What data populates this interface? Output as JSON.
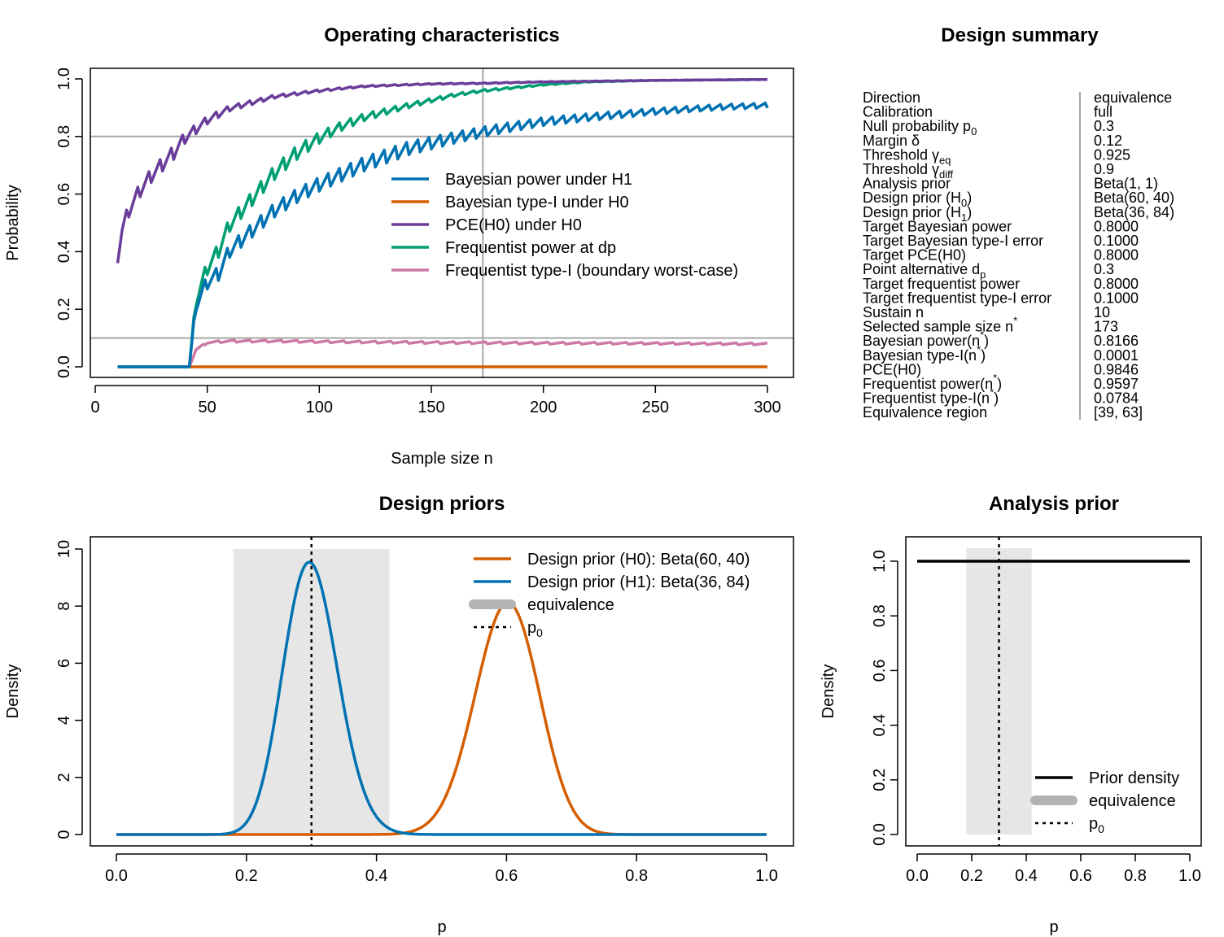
{
  "colors": {
    "blue": "#0072B2",
    "orange": "#D55E00",
    "purple": "#6A3D9A",
    "green": "#009E73",
    "pink": "#CC79A7",
    "gray_line": "#A6A6A6",
    "region": "#E6E6E6",
    "legend_gray": "#B3B3B3"
  },
  "chart_data": [
    {
      "id": "operating",
      "type": "line",
      "title": "Operating characteristics",
      "xlabel": "Sample size n",
      "ylabel": "Probability",
      "xlim": [
        0,
        300
      ],
      "ylim": [
        0,
        1
      ],
      "xticks": [
        0,
        50,
        100,
        150,
        200,
        250,
        300
      ],
      "yticks": [
        0.0,
        0.2,
        0.4,
        0.6,
        0.8,
        1.0
      ],
      "xtick_labels": [
        "0",
        "50",
        "100",
        "150",
        "200",
        "250",
        "300"
      ],
      "ytick_labels": [
        "0.0",
        "0.2",
        "0.4",
        "0.6",
        "0.8",
        "1.0"
      ],
      "ref_hlines": [
        0.8,
        0.1
      ],
      "ref_vline": 173,
      "legend_position": "right",
      "series": [
        {
          "name": "Bayesian power under H1",
          "color_key": "blue",
          "x": [
            10,
            40,
            42,
            45,
            50,
            55,
            60,
            70,
            80,
            90,
            100,
            120,
            140,
            160,
            173,
            180,
            200,
            220,
            250,
            280,
            300
          ],
          "y": [
            0,
            0,
            0,
            0.22,
            0.3,
            0.33,
            0.41,
            0.48,
            0.55,
            0.6,
            0.64,
            0.71,
            0.765,
            0.8,
            0.82,
            0.83,
            0.855,
            0.87,
            0.89,
            0.905,
            0.91
          ]
        },
        {
          "name": "Bayesian type-I under H0",
          "color_key": "orange",
          "x": [
            10,
            300
          ],
          "y": [
            0,
            0
          ]
        },
        {
          "name": "PCE(H0) under H0",
          "color_key": "purple",
          "x": [
            10,
            12,
            15,
            20,
            25,
            30,
            35,
            40,
            45,
            50,
            60,
            70,
            80,
            100,
            120,
            150,
            173,
            200,
            250,
            300
          ],
          "y": [
            0.39,
            0.48,
            0.55,
            0.62,
            0.67,
            0.71,
            0.75,
            0.8,
            0.83,
            0.86,
            0.9,
            0.92,
            0.94,
            0.96,
            0.975,
            0.983,
            0.985,
            0.99,
            0.995,
            0.998
          ]
        },
        {
          "name": "Frequentist power at dp",
          "color_key": "green",
          "x": [
            10,
            40,
            42,
            45,
            50,
            55,
            60,
            70,
            80,
            90,
            100,
            110,
            120,
            140,
            160,
            173,
            180,
            200,
            220,
            250,
            300
          ],
          "y": [
            0,
            0,
            0,
            0.24,
            0.35,
            0.41,
            0.5,
            0.59,
            0.68,
            0.75,
            0.8,
            0.84,
            0.87,
            0.91,
            0.945,
            0.96,
            0.965,
            0.98,
            0.99,
            0.995,
            0.998
          ]
        },
        {
          "name": "Frequentist type-I (boundary worst-case)",
          "color_key": "pink",
          "x": [
            10,
            40,
            42,
            45,
            50,
            60,
            70,
            80,
            100,
            150,
            200,
            250,
            300
          ],
          "y": [
            0,
            0,
            0,
            0.06,
            0.085,
            0.09,
            0.09,
            0.09,
            0.088,
            0.085,
            0.083,
            0.082,
            0.08
          ]
        }
      ]
    },
    {
      "id": "design-priors",
      "type": "line",
      "title": "Design priors",
      "xlabel": "p",
      "ylabel": "Density",
      "xlim": [
        0,
        1
      ],
      "ylim": [
        0,
        10
      ],
      "xticks": [
        0,
        0.2,
        0.4,
        0.6,
        0.8,
        1.0
      ],
      "yticks": [
        0,
        2,
        4,
        6,
        8,
        10
      ],
      "xtick_labels": [
        "0.0",
        "0.2",
        "0.4",
        "0.6",
        "0.8",
        "1.0"
      ],
      "ytick_labels": [
        "0",
        "2",
        "4",
        "6",
        "8",
        "10"
      ],
      "equivalence_region": [
        0.18,
        0.42
      ],
      "p0": 0.3,
      "legend_position": "top-right",
      "series": [
        {
          "name": "Design prior (H0): Beta(60, 40)",
          "color_key": "orange",
          "beta": [
            60,
            40
          ]
        },
        {
          "name": "Design prior (H1): Beta(36, 84)",
          "color_key": "blue",
          "beta": [
            36,
            84
          ]
        }
      ],
      "legend_extra": [
        "equivalence",
        "p"
      ]
    },
    {
      "id": "analysis-prior",
      "type": "line",
      "title": "Analysis prior",
      "xlabel": "p",
      "ylabel": "Density",
      "xlim": [
        0,
        1
      ],
      "ylim": [
        0,
        1.05
      ],
      "xticks": [
        0,
        0.2,
        0.4,
        0.6,
        0.8,
        1.0
      ],
      "yticks": [
        0.0,
        0.2,
        0.4,
        0.6,
        0.8,
        1.0
      ],
      "xtick_labels": [
        "0.0",
        "0.2",
        "0.4",
        "0.6",
        "0.8",
        "1.0"
      ],
      "ytick_labels": [
        "0.0",
        "0.2",
        "0.4",
        "0.6",
        "0.8",
        "1.0"
      ],
      "equivalence_region": [
        0.18,
        0.42
      ],
      "p0": 0.3,
      "legend_position": "bottom-right",
      "series": [
        {
          "name": "Prior density",
          "color_key": "black",
          "x": [
            0,
            1
          ],
          "y": [
            1,
            1
          ]
        }
      ],
      "legend_extra": [
        "equivalence",
        "p"
      ]
    }
  ],
  "summary": {
    "title": "Design summary",
    "rows": [
      {
        "label": "Direction",
        "value": "equivalence"
      },
      {
        "label": "Calibration",
        "value": "full"
      },
      {
        "label": "Null probability p",
        "sub": "0",
        "value": "0.3"
      },
      {
        "label": "Margin δ",
        "value": "0.12"
      },
      {
        "label": "Threshold γ",
        "sub": "eq",
        "value": "0.925"
      },
      {
        "label": "Threshold γ",
        "sub": "diff",
        "value": "0.9"
      },
      {
        "label": "Analysis prior",
        "value": "Beta(1, 1)"
      },
      {
        "label": "Design prior (H",
        "sub": "0",
        "after": ")",
        "value": "Beta(60, 40)"
      },
      {
        "label": "Design prior (H",
        "sub": "1",
        "after": ")",
        "value": "Beta(36, 84)"
      },
      {
        "label": "Target Bayesian power",
        "value": "0.8000"
      },
      {
        "label": "Target Bayesian type-I error",
        "value": "0.1000"
      },
      {
        "label": "Target PCE(H0)",
        "value": "0.8000"
      },
      {
        "label": "Point alternative d",
        "sub": "p",
        "value": "0.3"
      },
      {
        "label": "Target frequentist power",
        "value": "0.8000"
      },
      {
        "label": "Target frequentist type-I error",
        "value": "0.1000"
      },
      {
        "label": "Sustain n",
        "value": "10"
      },
      {
        "label": "Selected sample size n",
        "sup": "*",
        "value": "173"
      },
      {
        "label": "Bayesian power(n",
        "sup": "*",
        "after": ")",
        "value": "0.8166"
      },
      {
        "label": "Bayesian type-I(n",
        "sup": "*",
        "after": ")",
        "value": "0.0001"
      },
      {
        "label": "PCE(H0)",
        "value": "0.9846"
      },
      {
        "label": "Frequentist power(n",
        "sup": "*",
        "after": ")",
        "value": "0.9597"
      },
      {
        "label": "Frequentist type-I(n",
        "sup": "*",
        "after": ")",
        "value": "0.0784"
      },
      {
        "label": "Equivalence region",
        "value": "[39, 63]"
      }
    ]
  }
}
